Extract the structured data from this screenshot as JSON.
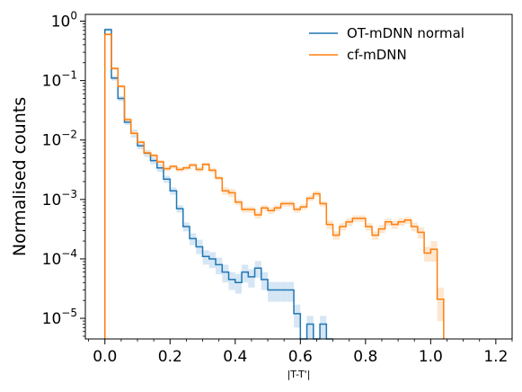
{
  "chart_data": {
    "type": "histogram-step",
    "xlabel": "|T-T'|",
    "ylabel": "Normalised counts",
    "xlim": [
      -0.06,
      1.25
    ],
    "ylim": [
      4.5e-06,
      1.3
    ],
    "yscale": "log",
    "grid": false,
    "legend_position": "top-right",
    "x_ticks": [
      0.0,
      0.2,
      0.4,
      0.6,
      0.8,
      1.0,
      1.2
    ],
    "x_tick_labels": [
      "0.0",
      "0.2",
      "0.4",
      "0.6",
      "0.8",
      "1.0",
      "1.2"
    ],
    "y_tick_labels": [
      {
        "base": "10",
        "exp": "0",
        "value": 1
      },
      {
        "base": "10",
        "exp": "−1",
        "value": 0.1
      },
      {
        "base": "10",
        "exp": "−2",
        "value": 0.01
      },
      {
        "base": "10",
        "exp": "−3",
        "value": 0.001
      },
      {
        "base": "10",
        "exp": "−4",
        "value": 0.0001
      },
      {
        "base": "10",
        "exp": "−5",
        "value": 1e-05
      }
    ],
    "series": [
      {
        "name": "OT-mDNN normal",
        "color": "#1f77b4",
        "band_color": "#cfe2f3",
        "bin_edges": [
          0.0,
          0.02,
          0.04,
          0.06,
          0.08,
          0.1,
          0.12,
          0.14,
          0.16,
          0.18,
          0.2,
          0.22,
          0.24,
          0.26,
          0.28,
          0.3,
          0.32,
          0.34,
          0.36,
          0.38,
          0.4,
          0.42,
          0.44,
          0.46,
          0.48,
          0.5,
          0.52,
          0.54,
          0.56,
          0.58,
          0.6,
          0.62,
          0.64,
          0.66,
          0.68,
          0.7
        ],
        "values": [
          0.72,
          0.11,
          0.05,
          0.02,
          0.013,
          0.008,
          0.006,
          0.0045,
          0.0034,
          0.0022,
          0.0014,
          0.0007,
          0.00035,
          0.00022,
          0.00016,
          0.00011,
          0.0001,
          8e-05,
          6e-05,
          4.5e-05,
          4e-05,
          6e-05,
          5e-05,
          7e-05,
          4.5e-05,
          3e-05,
          3e-05,
          3e-05,
          3e-05,
          1.2e-05,
          4.5e-06,
          8e-06,
          4.5e-06,
          8e-06,
          4.5e-06
        ],
        "band_low": [
          0.68,
          0.1,
          0.045,
          0.018,
          0.011,
          0.007,
          0.0052,
          0.0039,
          0.0029,
          0.0019,
          0.0012,
          0.0006,
          0.00029,
          0.00017,
          0.00012,
          8e-05,
          7e-05,
          5.5e-05,
          4e-05,
          3e-05,
          2.6e-05,
          4e-05,
          3.3e-05,
          4.8e-05,
          3e-05,
          1.9e-05,
          1.9e-05,
          1.9e-05,
          1.9e-05,
          7e-06,
          4.5e-06,
          4.5e-06,
          4.5e-06,
          4.5e-06,
          4.5e-06
        ],
        "band_high": [
          0.76,
          0.12,
          0.055,
          0.022,
          0.015,
          0.009,
          0.0068,
          0.0051,
          0.0039,
          0.0025,
          0.0016,
          0.0008,
          0.00041,
          0.00027,
          0.00021,
          0.00014,
          0.00013,
          0.000105,
          8e-05,
          6e-05,
          5.6e-05,
          8e-05,
          6.7e-05,
          9.2e-05,
          6e-05,
          4.1e-05,
          4.1e-05,
          4.1e-05,
          4.1e-05,
          1.7e-05,
          4.5e-06,
          1.1e-05,
          4.5e-06,
          1.1e-05,
          4.5e-06
        ]
      },
      {
        "name": "cf-mDNN",
        "color": "#ff7f0e",
        "band_color": "#fde3c8",
        "bin_edges": [
          0.0,
          0.02,
          0.04,
          0.06,
          0.08,
          0.1,
          0.12,
          0.14,
          0.16,
          0.18,
          0.2,
          0.22,
          0.24,
          0.26,
          0.28,
          0.3,
          0.32,
          0.34,
          0.36,
          0.38,
          0.4,
          0.42,
          0.44,
          0.46,
          0.48,
          0.5,
          0.52,
          0.54,
          0.56,
          0.58,
          0.6,
          0.62,
          0.64,
          0.66,
          0.68,
          0.7,
          0.72,
          0.74,
          0.76,
          0.78,
          0.8,
          0.82,
          0.84,
          0.86,
          0.88,
          0.9,
          0.92,
          0.94,
          0.96,
          0.98,
          1.0,
          1.02,
          1.04
        ],
        "values": [
          0.6,
          0.16,
          0.08,
          0.022,
          0.013,
          0.0092,
          0.0061,
          0.0055,
          0.0043,
          0.0033,
          0.0036,
          0.0032,
          0.0034,
          0.0038,
          0.0032,
          0.0039,
          0.0031,
          0.0023,
          0.0014,
          0.0013,
          0.0009,
          0.00068,
          0.00068,
          0.00055,
          0.00072,
          0.00065,
          0.00072,
          0.00085,
          0.00085,
          0.00068,
          0.00075,
          0.00105,
          0.00125,
          0.00085,
          0.00038,
          0.00025,
          0.00035,
          0.00042,
          0.00048,
          0.00048,
          0.00035,
          0.00025,
          0.00032,
          0.00042,
          0.00038,
          0.00042,
          0.00045,
          0.00035,
          0.00028,
          0.000125,
          0.000145,
          2.1e-05
        ],
        "band_low": [
          0.57,
          0.15,
          0.075,
          0.02,
          0.012,
          0.0085,
          0.0056,
          0.0051,
          0.004,
          0.003,
          0.0033,
          0.0029,
          0.0031,
          0.0035,
          0.0029,
          0.0036,
          0.0028,
          0.0021,
          0.0012,
          0.0011,
          0.0008,
          0.0006,
          0.0006,
          0.00048,
          0.00064,
          0.00057,
          0.00064,
          0.00076,
          0.00076,
          0.0006,
          0.00067,
          0.00094,
          0.00112,
          0.00076,
          0.00032,
          0.00021,
          0.0003,
          0.00036,
          0.00042,
          0.00042,
          0.0003,
          0.00021,
          0.00027,
          0.00036,
          0.00032,
          0.00036,
          0.00039,
          0.00029,
          0.00022,
          9e-05,
          9e-05,
          9e-06
        ],
        "band_high": [
          0.63,
          0.17,
          0.085,
          0.024,
          0.014,
          0.0099,
          0.0066,
          0.0059,
          0.0046,
          0.0036,
          0.0039,
          0.0035,
          0.0037,
          0.0041,
          0.0035,
          0.0042,
          0.0034,
          0.0025,
          0.0016,
          0.0015,
          0.001,
          0.00076,
          0.00076,
          0.00062,
          0.0008,
          0.00073,
          0.0008,
          0.00094,
          0.00094,
          0.00076,
          0.00083,
          0.00116,
          0.00138,
          0.00094,
          0.00044,
          0.00029,
          0.0004,
          0.00048,
          0.00054,
          0.00054,
          0.0004,
          0.00029,
          0.00037,
          0.00048,
          0.00044,
          0.00048,
          0.00051,
          0.00041,
          0.00034,
          0.00016,
          0.0002,
          3.3e-05
        ]
      }
    ]
  }
}
